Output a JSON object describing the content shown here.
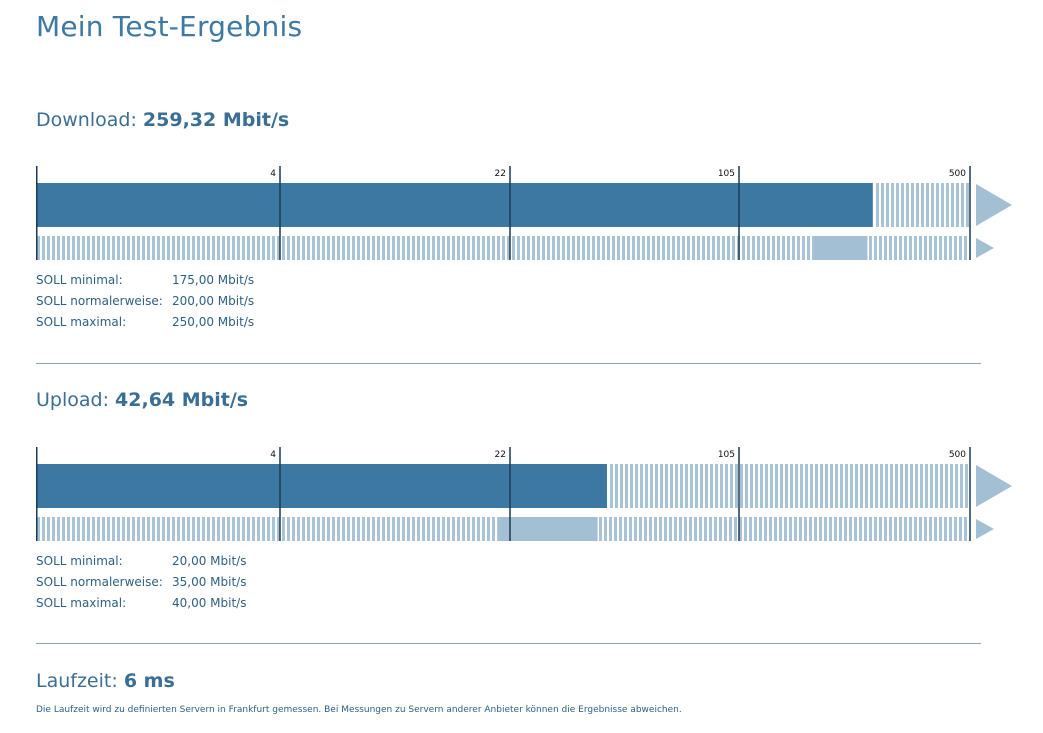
{
  "page_title": "Mein Test-Ergebnis",
  "colors": {
    "bar": "#3d78a3",
    "light": "#a3bfd3",
    "stripe": "#a9c3d6",
    "tick": "#1c3a55"
  },
  "scale_ticks": [
    "4",
    "22",
    "105",
    "500"
  ],
  "download": {
    "label": "Download:",
    "value": "259,32 Mbit/s",
    "soll": [
      {
        "label": "SOLL minimal:",
        "value": "175,00 Mbit/s"
      },
      {
        "label": "SOLL normalerweise:",
        "value": "200,00 Mbit/s"
      },
      {
        "label": "SOLL maximal:",
        "value": "250,00 Mbit/s"
      }
    ]
  },
  "upload": {
    "label": "Upload:",
    "value": "42,64 Mbit/s",
    "soll": [
      {
        "label": "SOLL minimal:",
        "value": "20,00 Mbit/s"
      },
      {
        "label": "SOLL normalerweise:",
        "value": "35,00 Mbit/s"
      },
      {
        "label": "SOLL maximal:",
        "value": "40,00 Mbit/s"
      }
    ]
  },
  "latency": {
    "label": "Laufzeit:",
    "value": "6 ms",
    "note": "Die Laufzeit wird zu definierten Servern in Frankfurt gemessen. Bei Messungen zu Servern anderer Anbieter können die Ergebnisse abweichen."
  },
  "chart_data": [
    {
      "type": "bar",
      "title": "Download",
      "unit": "Mbit/s",
      "scale": "log-segmented",
      "ticks": [
        4,
        22,
        105,
        500
      ],
      "measured": 259.32,
      "soll_min": 175.0,
      "soll_normal": 200.0,
      "soll_max": 250.0
    },
    {
      "type": "bar",
      "title": "Upload",
      "unit": "Mbit/s",
      "scale": "log-segmented",
      "ticks": [
        4,
        22,
        105,
        500
      ],
      "measured": 42.64,
      "soll_min": 20.0,
      "soll_normal": 35.0,
      "soll_max": 40.0
    }
  ]
}
